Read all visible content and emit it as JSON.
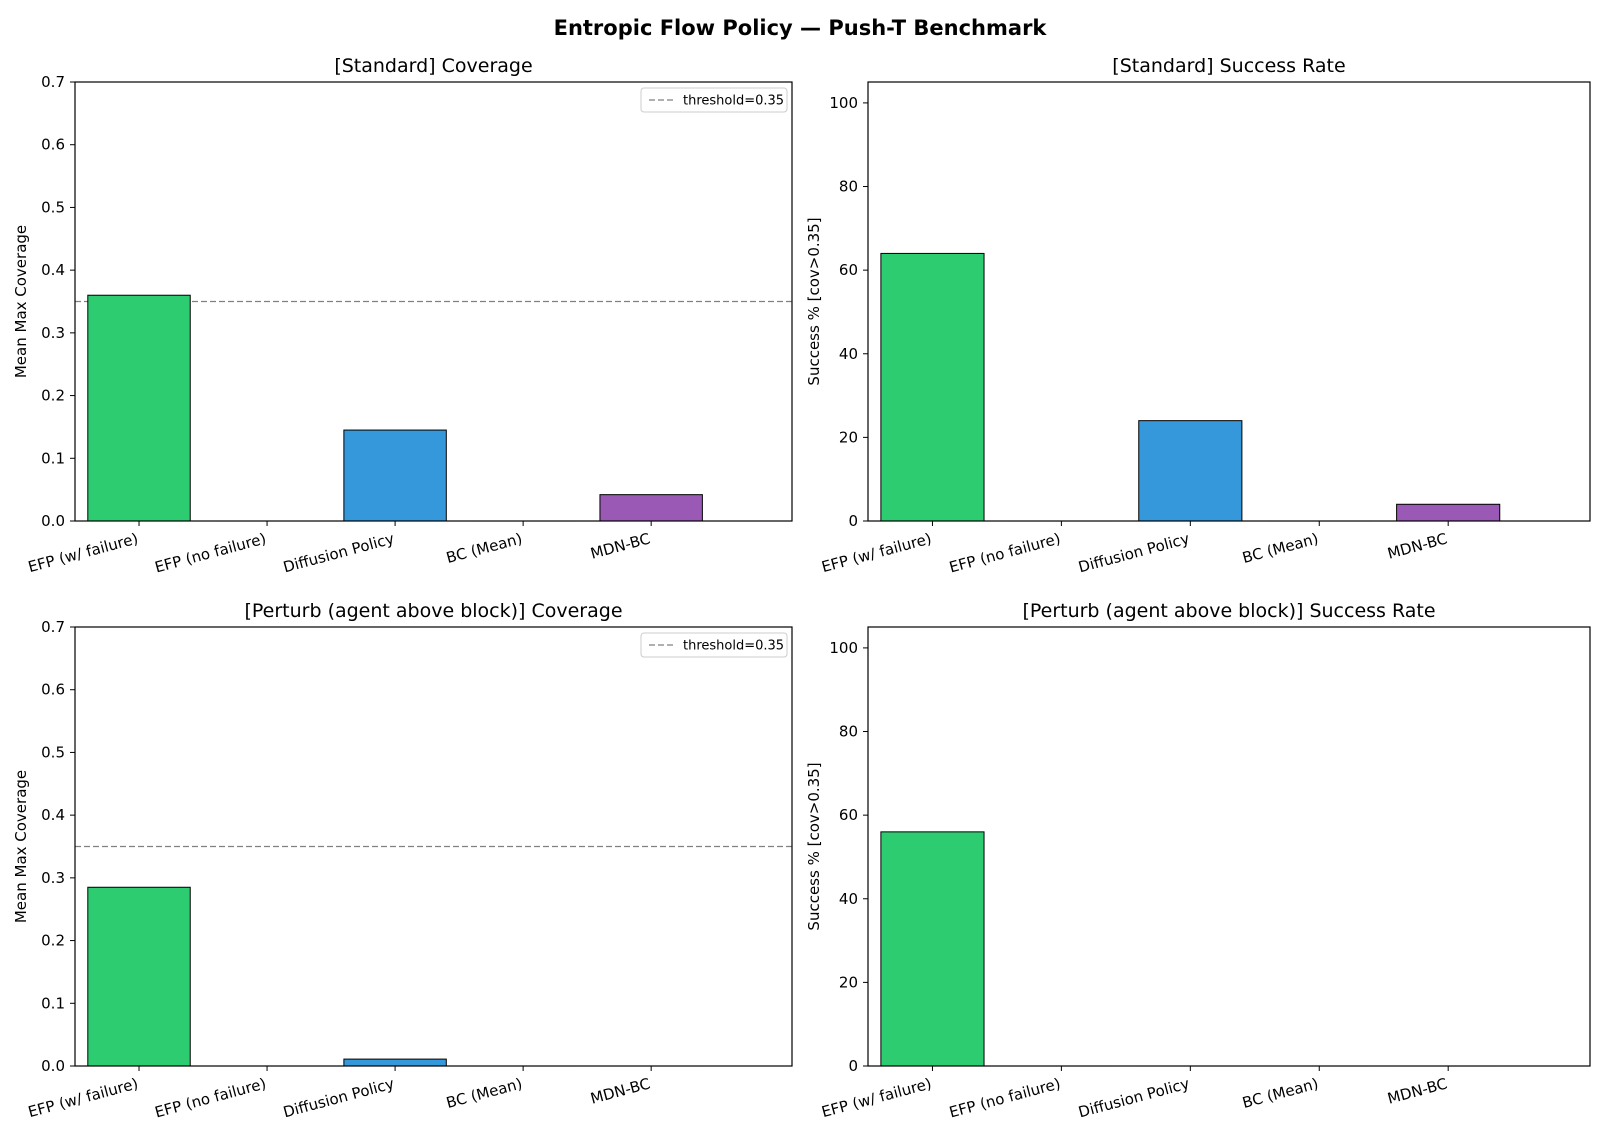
{
  "figure_title": "Entropic Flow Policy — Push-T Benchmark",
  "colors": {
    "efp_w_failure": "#2ecc71",
    "efp_no_failure": "#e67e22",
    "diffusion_policy": "#3498db",
    "bc_mean": "#e74c3c",
    "mdn_bc": "#9b59b6",
    "threshold": "#808080"
  },
  "chart_data": [
    {
      "type": "bar",
      "title": "[Standard] Coverage",
      "ylabel": "Mean Max Coverage",
      "xlabel": "",
      "categories": [
        "EFP (w/ failure)",
        "EFP (no failure)",
        "Diffusion Policy",
        "BC (Mean)",
        "MDN-BC"
      ],
      "values": [
        0.36,
        0.0,
        0.145,
        0.0,
        0.042
      ],
      "ylim": [
        0,
        0.7
      ],
      "yticks": [
        "0.0",
        "0.1",
        "0.2",
        "0.3",
        "0.4",
        "0.5",
        "0.6",
        "0.7"
      ],
      "threshold": 0.35,
      "legend": {
        "label": "threshold=0.35",
        "placement": "top-right"
      },
      "grid": false
    },
    {
      "type": "bar",
      "title": "[Standard] Success Rate",
      "ylabel": "Success % [cov>0.35]",
      "xlabel": "",
      "categories": [
        "EFP (w/ failure)",
        "EFP (no failure)",
        "Diffusion Policy",
        "BC (Mean)",
        "MDN-BC"
      ],
      "values": [
        64,
        0,
        24,
        0,
        4
      ],
      "ylim": [
        0,
        105
      ],
      "yticks": [
        "0",
        "20",
        "40",
        "60",
        "80",
        "100"
      ],
      "grid": false
    },
    {
      "type": "bar",
      "title": "[Perturb (agent above block)] Coverage",
      "ylabel": "Mean Max Coverage",
      "xlabel": "",
      "categories": [
        "EFP (w/ failure)",
        "EFP (no failure)",
        "Diffusion Policy",
        "BC (Mean)",
        "MDN-BC"
      ],
      "values": [
        0.285,
        0.0,
        0.011,
        0.0,
        0.0
      ],
      "ylim": [
        0,
        0.7
      ],
      "yticks": [
        "0.0",
        "0.1",
        "0.2",
        "0.3",
        "0.4",
        "0.5",
        "0.6",
        "0.7"
      ],
      "threshold": 0.35,
      "legend": {
        "label": "threshold=0.35",
        "placement": "top-right"
      },
      "grid": false
    },
    {
      "type": "bar",
      "title": "[Perturb (agent above block)] Success Rate",
      "ylabel": "Success % [cov>0.35]",
      "xlabel": "",
      "categories": [
        "EFP (w/ failure)",
        "EFP (no failure)",
        "Diffusion Policy",
        "BC (Mean)",
        "MDN-BC"
      ],
      "values": [
        56,
        0,
        0,
        0,
        0
      ],
      "ylim": [
        0,
        105
      ],
      "yticks": [
        "0",
        "20",
        "40",
        "60",
        "80",
        "100"
      ],
      "grid": false
    }
  ]
}
